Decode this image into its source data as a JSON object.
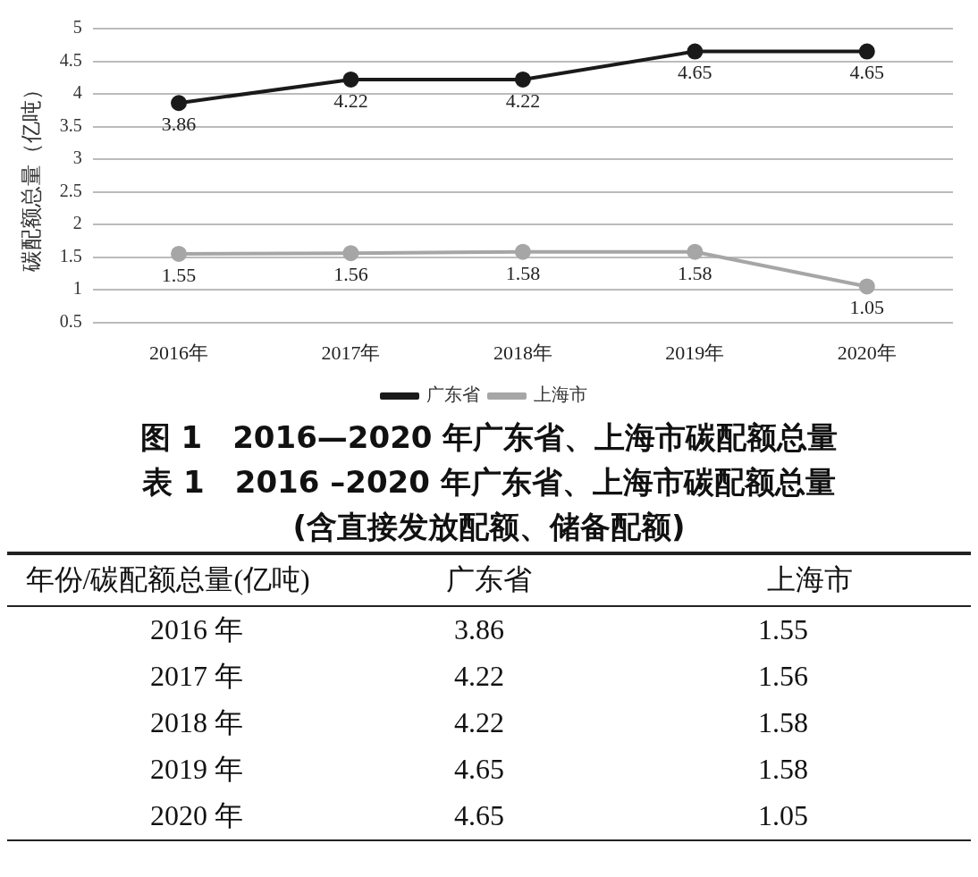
{
  "chart_data": [
    {
      "type": "line",
      "title": "图 1　2016—2020 年广东省、上海市碳配额总量",
      "ylabel": "碳配额总量（亿吨）",
      "categories": [
        "2016年",
        "2017年",
        "2018年",
        "2019年",
        "2020年"
      ],
      "series": [
        {
          "name": "广东省",
          "color": "#1a1a1a",
          "values": [
            3.86,
            4.22,
            4.22,
            4.65,
            4.65
          ]
        },
        {
          "name": "上海市",
          "color": "#a6a6a6",
          "values": [
            1.55,
            1.56,
            1.58,
            1.58,
            1.05
          ]
        }
      ],
      "ylim": [
        0.5,
        5
      ],
      "yticks": [
        0.5,
        1,
        1.5,
        2,
        2.5,
        3,
        3.5,
        4,
        4.5,
        5
      ],
      "grid": "y",
      "legend": "bottom",
      "marker": "circle",
      "line_style": "solid",
      "data_labels": true
    },
    {
      "type": "other",
      "title": "表 1　2016 –2020 年广东省、上海市碳配额总量",
      "subtitle": "(含直接发放配额、储备配额)",
      "annotations": [
        "年份/碳配额总量(亿吨)",
        "广东省",
        "上海市",
        "2016 年\t3.86\t1.55",
        "2017 年\t4.22\t1.56",
        "2018 年\t4.22\t1.58",
        "2019 年\t4.65\t1.58",
        "2020 年\t4.65\t1.05"
      ]
    }
  ]
}
